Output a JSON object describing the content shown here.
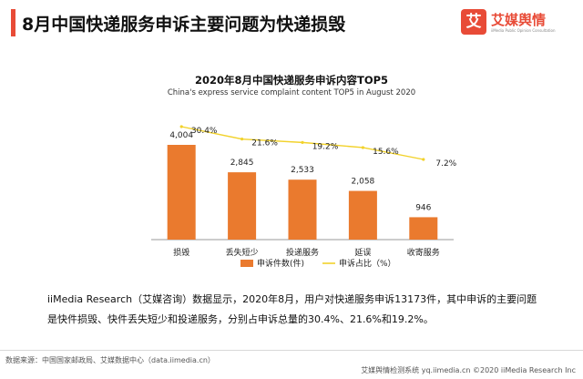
{
  "colors": {
    "accent": "#e84b37",
    "bar": "#ea7a2e",
    "line": "#f2d22b",
    "axis": "#999999"
  },
  "header": {
    "title": "8月中国快递服务申诉主要问题为快递损毁"
  },
  "brand": {
    "mark": "艾",
    "name": "艾媒舆情",
    "tagline": "iiMedia Public Opinion Consultation"
  },
  "chart_data": {
    "type": "bar",
    "title": "2020年8月中国快递服务申诉内容TOP5",
    "subtitle": "China's express service complaint content TOP5 in August 2020",
    "categories": [
      "损毁",
      "丢失短少",
      "投递服务",
      "延误",
      "收寄服务"
    ],
    "series": [
      {
        "name": "申诉件数(件)",
        "type": "bar",
        "values": [
          4004,
          2845,
          2533,
          2058,
          946
        ],
        "labels": [
          "4,004",
          "2,845",
          "2,533",
          "2,058",
          "946"
        ]
      },
      {
        "name": "申诉占比（%）",
        "type": "line",
        "values": [
          30.4,
          21.6,
          19.2,
          15.6,
          7.2
        ],
        "labels": [
          "30.4%",
          "21.6%",
          "19.2%",
          "15.6%",
          "7.2%"
        ]
      }
    ],
    "xlabel": "",
    "ylabel": "",
    "legend_position": "bottom"
  },
  "body": {
    "text": "iiMedia Research（艾媒咨询）数据显示，2020年8月，用户对快递服务申诉13173件，其中申诉的主要问题是快件损毁、快件丢失短少和投递服务，分别占申诉总量的30.4%、21.6%和19.2%。"
  },
  "footer": {
    "source": "数据来源：中国国家邮政局、艾媒数据中心（data.iimedia.cn）",
    "copyright": "艾媒舆情检测系统 yq.iimedia.cn ©2020  iiMedia Research  Inc"
  }
}
